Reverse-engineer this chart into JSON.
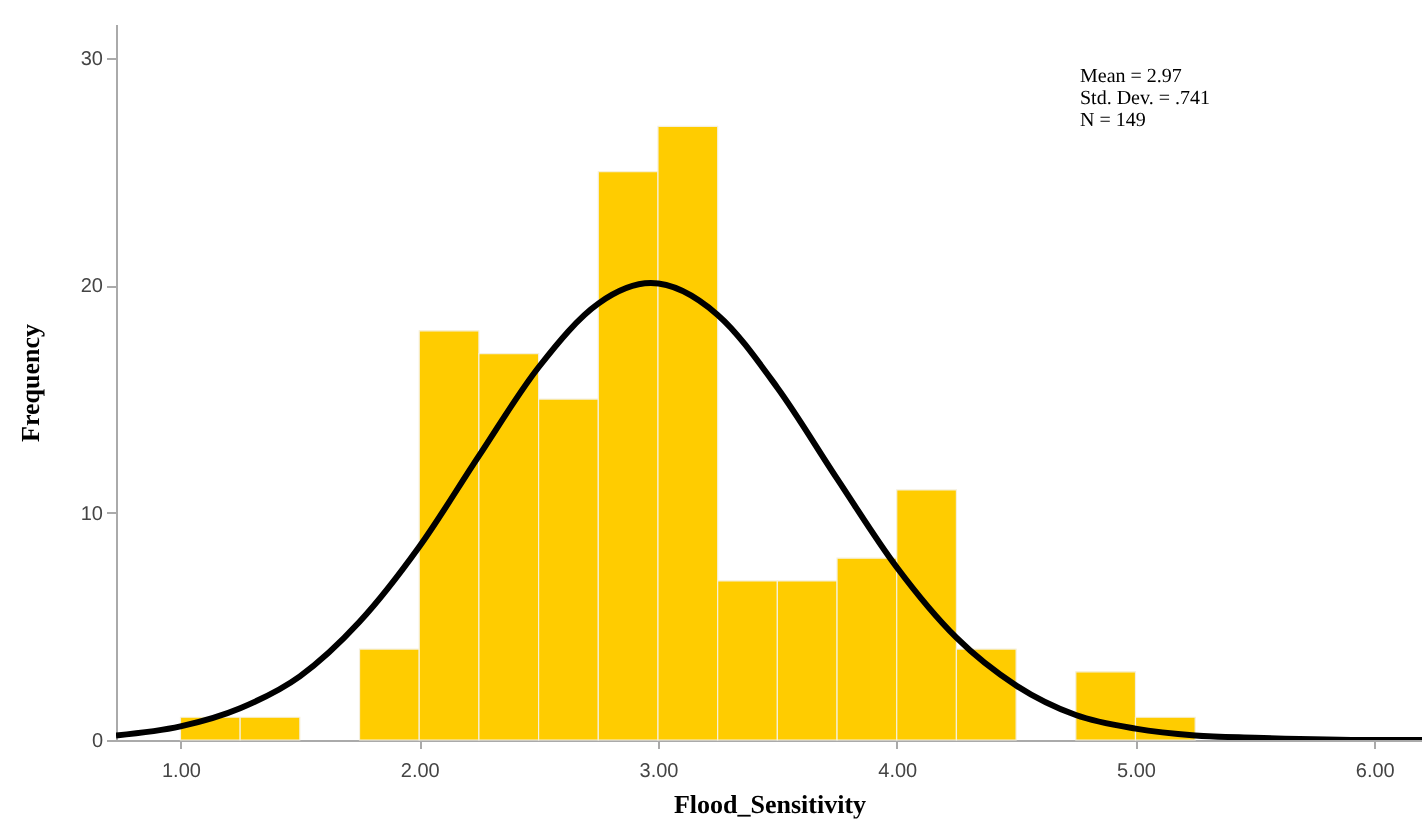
{
  "chart_data": {
    "type": "histogram",
    "xlabel": "Flood_Sensitivity",
    "ylabel": "Frequency",
    "bins": [
      1.0,
      1.25,
      1.5,
      1.75,
      2.0,
      2.25,
      2.5,
      2.75,
      3.0,
      3.25,
      3.5,
      3.75,
      4.0,
      4.25,
      4.5,
      4.75,
      5.0,
      5.25
    ],
    "values": [
      1,
      1,
      0,
      4,
      18,
      17,
      15,
      25,
      27,
      7,
      7,
      8,
      11,
      4,
      0,
      3,
      1
    ],
    "color": "#ffcc00",
    "series": [
      {
        "type": "line",
        "color": "#000000",
        "x": [
          0.73,
          1.0,
          1.25,
          1.5,
          1.75,
          2.0,
          2.25,
          2.5,
          2.75,
          2.97,
          3.25,
          3.5,
          3.75,
          4.0,
          4.25,
          4.5,
          4.75,
          5.0,
          5.25,
          5.5,
          6.0,
          6.2
        ],
        "values": [
          0.2,
          0.6,
          1.4,
          2.8,
          5.2,
          8.5,
          12.5,
          16.4,
          19.2,
          20.1,
          18.7,
          15.5,
          11.5,
          7.6,
          4.5,
          2.4,
          1.1,
          0.5,
          0.2,
          0.1,
          0,
          0
        ]
      }
    ],
    "xlim": [
      0.73,
      6.2
    ],
    "xticks": [
      {
        "value": 1,
        "label": "1.00"
      },
      {
        "value": 2,
        "label": "2.00"
      },
      {
        "value": 3,
        "label": "3.00"
      },
      {
        "value": 4,
        "label": "4.00"
      },
      {
        "value": 5,
        "label": "5.00"
      },
      {
        "value": 6,
        "label": "6.00"
      }
    ],
    "ylim": [
      0,
      31.5
    ],
    "yticks": [
      0,
      10,
      20,
      30
    ],
    "annotations": [
      "Mean = 2.97",
      "Std. Dev. = .741",
      "N = 149"
    ]
  }
}
